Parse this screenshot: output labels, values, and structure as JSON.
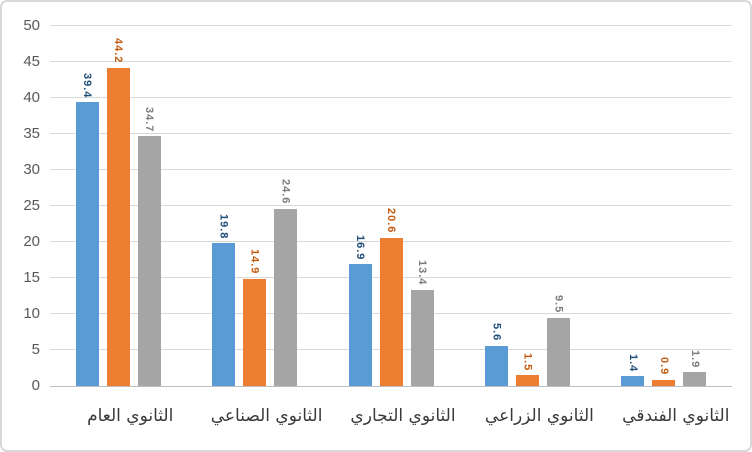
{
  "chart_data": {
    "type": "bar",
    "title": "",
    "categories": [
      "الثانوي العام",
      "الثانوي الصناعي",
      "الثانوي التجاري",
      "الثانوي الزراعي",
      "الثانوي الفندقي"
    ],
    "series": [
      {
        "color": "#5B9BD5",
        "label_color": "#1F4E79",
        "values": [
          39.4,
          19.8,
          16.9,
          5.6,
          1.4
        ]
      },
      {
        "color": "#ED7D31",
        "label_color": "#C55A11",
        "values": [
          44.2,
          14.9,
          20.6,
          1.5,
          0.9
        ]
      },
      {
        "color": "#A5A5A5",
        "label_color": "#7C7C7C",
        "values": [
          34.7,
          24.6,
          13.4,
          9.5,
          1.9
        ]
      }
    ],
    "ylim": [
      0,
      50
    ],
    "ytick_step": 5,
    "yticks": [
      0,
      5,
      10,
      15,
      20,
      25,
      30,
      35,
      40,
      45,
      50
    ],
    "grid": true,
    "legend": false,
    "value_labels": {
      "rotated": true,
      "decimals": 1
    },
    "colors": {
      "gridline": "#D9D9D9",
      "axis_line": "#BFBFBF",
      "tick_label": "#595959",
      "category_label": "#3A3A3A",
      "background": "#FFFFFF",
      "border": "#D9D9D9"
    }
  }
}
